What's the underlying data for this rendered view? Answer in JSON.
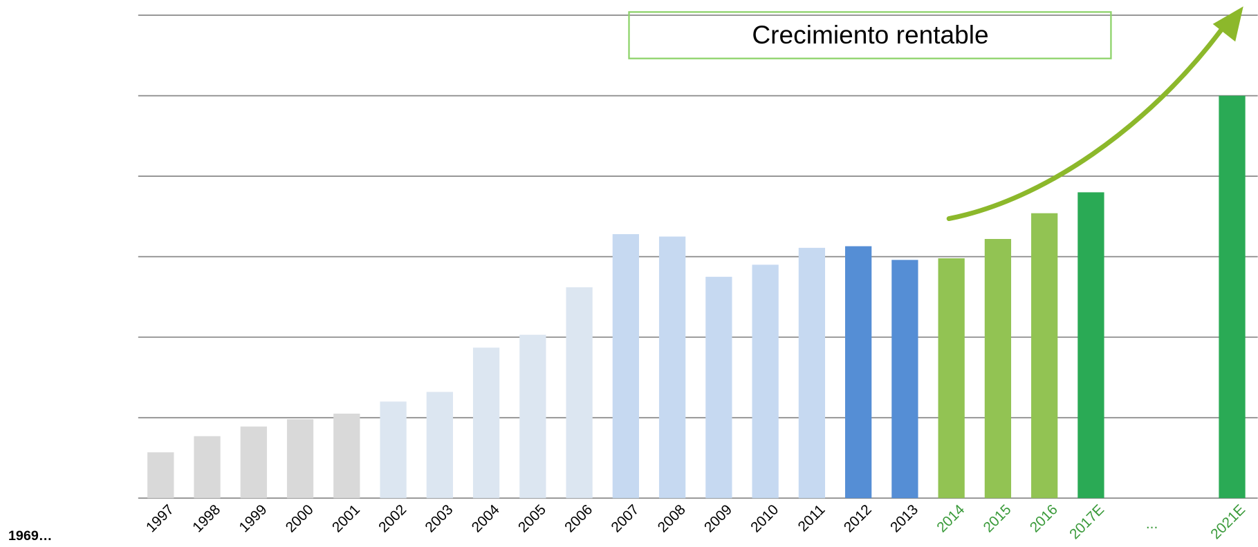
{
  "chart_data": {
    "type": "bar",
    "categories": [
      "1997",
      "1998",
      "1999",
      "2000",
      "2001",
      "2002",
      "2003",
      "2004",
      "2005",
      "2006",
      "2007",
      "2008",
      "2009",
      "2010",
      "2011",
      "2012",
      "2013",
      "2014",
      "2015",
      "2016",
      "2017E",
      "...",
      "2021E"
    ],
    "values": [
      0.57,
      0.77,
      0.89,
      0.98,
      1.05,
      1.2,
      1.32,
      1.87,
      2.03,
      2.62,
      3.28,
      3.25,
      2.75,
      2.9,
      3.11,
      3.13,
      2.96,
      2.98,
      3.22,
      3.54,
      3.8,
      null,
      5.0
    ],
    "colors": [
      "#d9d9d9",
      "#d9d9d9",
      "#d9d9d9",
      "#d9d9d9",
      "#d9d9d9",
      "#dce6f1",
      "#dce6f1",
      "#dce6f1",
      "#dce6f1",
      "#dce6f1",
      "#c6d9f1",
      "#c6d9f1",
      "#c6d9f1",
      "#c6d9f1",
      "#c6d9f1",
      "#558ed5",
      "#558ed5",
      "#92c353",
      "#92c353",
      "#92c353",
      "#2aaa55",
      "#2aaa55",
      "#2aaa55"
    ],
    "label_colors": [
      "#000000",
      "#000000",
      "#000000",
      "#000000",
      "#000000",
      "#000000",
      "#000000",
      "#000000",
      "#000000",
      "#000000",
      "#000000",
      "#000000",
      "#000000",
      "#000000",
      "#000000",
      "#000000",
      "#000000",
      "#3a9a3a",
      "#3a9a3a",
      "#3a9a3a",
      "#3a9a3a",
      "#3a9a3a",
      "#3a9a3a"
    ],
    "ylim": [
      0,
      6
    ],
    "yticks": [
      0,
      1,
      2,
      3,
      4,
      5,
      6
    ],
    "grid": true,
    "annotations": [
      "Crecimiento rentable",
      "1969…"
    ]
  }
}
